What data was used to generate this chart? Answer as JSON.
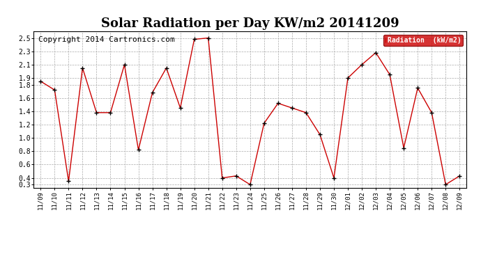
{
  "title": "Solar Radiation per Day KW/m2 20141209",
  "copyright_text": "Copyright 2014 Cartronics.com",
  "legend_label": "Radiation  (kW/m2)",
  "dates": [
    "11/09",
    "11/10",
    "11/11",
    "11/12",
    "11/13",
    "11/14",
    "11/15",
    "11/16",
    "11/17",
    "11/18",
    "11/19",
    "11/20",
    "11/21",
    "11/22",
    "11/23",
    "11/24",
    "11/25",
    "11/26",
    "11/27",
    "11/28",
    "11/29",
    "11/30",
    "12/01",
    "12/02",
    "12/03",
    "12/04",
    "12/05",
    "12/06",
    "12/07",
    "12/08",
    "12/09"
  ],
  "values": [
    1.85,
    1.72,
    0.35,
    2.05,
    1.38,
    1.38,
    2.1,
    0.82,
    1.68,
    2.05,
    1.45,
    2.48,
    2.5,
    0.4,
    0.43,
    0.3,
    1.22,
    1.52,
    1.45,
    1.38,
    1.05,
    0.4,
    1.9,
    2.1,
    2.28,
    1.95,
    0.85,
    1.75,
    1.38,
    0.3,
    0.43
  ],
  "line_color": "#cc0000",
  "marker_color": "#000000",
  "background_color": "#ffffff",
  "grid_color": "#aaaaaa",
  "title_fontsize": 13,
  "copyright_fontsize": 8,
  "legend_bg": "#cc0000",
  "legend_text_color": "#ffffff",
  "ylim_min": 0.25,
  "ylim_max": 2.6,
  "yticks": [
    0.3,
    0.4,
    0.6,
    0.8,
    1.0,
    1.2,
    1.4,
    1.6,
    1.8,
    1.9,
    2.1,
    2.3,
    2.5
  ]
}
